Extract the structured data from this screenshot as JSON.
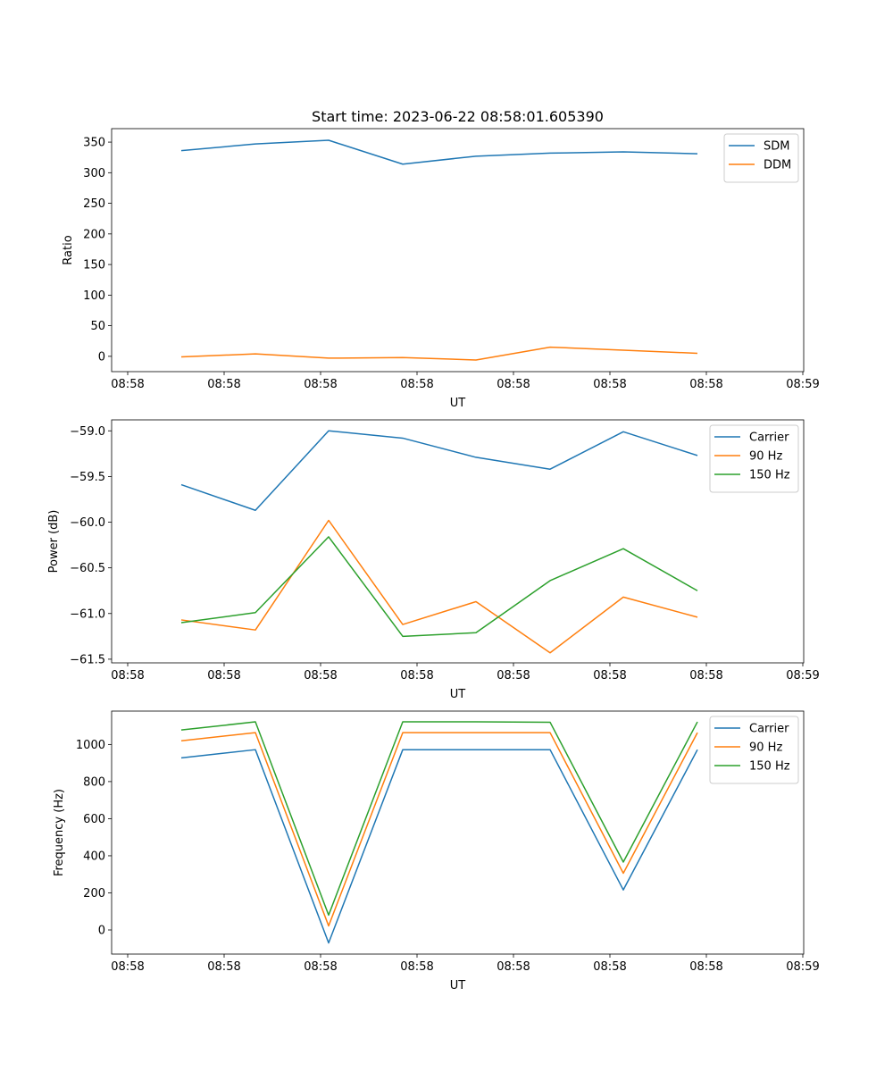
{
  "colors": {
    "blue": "#1f77b4",
    "orange": "#ff7f0e",
    "green": "#2ca02c"
  },
  "chart_data": [
    {
      "type": "line",
      "title": "Start time: 2023-06-22 08:58:01.605390",
      "xlabel": "UT",
      "ylabel": "Ratio",
      "x_tick_labels": [
        "08:58",
        "08:58",
        "08:58",
        "08:58",
        "08:58",
        "08:58",
        "08:58"
      ],
      "x_last_tick_label": "08:59",
      "y_ticks": [
        0,
        50,
        100,
        150,
        200,
        250,
        300,
        350
      ],
      "ylim": [
        -25,
        372
      ],
      "legend_position": "top-right",
      "grid": false,
      "series": [
        {
          "name": "SDM",
          "color": "blue",
          "values": [
            336,
            347,
            353,
            314,
            327,
            332,
            334,
            331
          ]
        },
        {
          "name": "DDM",
          "color": "orange",
          "values": [
            -1,
            4,
            -3,
            -2,
            -6,
            15,
            10,
            5
          ]
        }
      ]
    },
    {
      "type": "line",
      "title": "",
      "xlabel": "UT",
      "ylabel": "Power (dB)",
      "x_tick_labels": [
        "08:58",
        "08:58",
        "08:58",
        "08:58",
        "08:58",
        "08:58",
        "08:58"
      ],
      "x_last_tick_label": "08:59",
      "y_ticks": [
        -61.5,
        -61.0,
        -60.5,
        -60.0,
        -59.5,
        -59.0
      ],
      "y_tick_labels": [
        "−61.5",
        "−61.0",
        "−60.5",
        "−60.0",
        "−59.5",
        "−59.0"
      ],
      "ylim": [
        -61.54,
        -58.88
      ],
      "legend_position": "top-right",
      "grid": false,
      "series": [
        {
          "name": "Carrier",
          "color": "blue",
          "values": [
            -59.59,
            -59.87,
            -59.0,
            -59.08,
            -59.29,
            -59.42,
            -59.01,
            -59.27
          ]
        },
        {
          "name": "90 Hz",
          "color": "orange",
          "values": [
            -61.07,
            -61.18,
            -59.98,
            -61.12,
            -60.87,
            -61.43,
            -60.82,
            -61.04
          ]
        },
        {
          "name": "150 Hz",
          "color": "green",
          "values": [
            -61.1,
            -60.99,
            -60.16,
            -61.25,
            -61.21,
            -60.64,
            -60.29,
            -60.75
          ]
        }
      ]
    },
    {
      "type": "line",
      "title": "",
      "xlabel": "UT",
      "ylabel": "Frequency (Hz)",
      "x_tick_labels": [
        "08:58",
        "08:58",
        "08:58",
        "08:58",
        "08:58",
        "08:58",
        "08:58"
      ],
      "x_last_tick_label": "08:59",
      "y_ticks": [
        0,
        200,
        400,
        600,
        800,
        1000
      ],
      "ylim": [
        -130,
        1180
      ],
      "legend_position": "top-right",
      "grid": false,
      "series": [
        {
          "name": "Carrier",
          "color": "blue",
          "values": [
            928,
            972,
            -70,
            972,
            972,
            972,
            216,
            972
          ]
        },
        {
          "name": "90 Hz",
          "color": "orange",
          "values": [
            1020,
            1064,
            22,
            1064,
            1064,
            1064,
            306,
            1064
          ]
        },
        {
          "name": "150 Hz",
          "color": "green",
          "values": [
            1078,
            1122,
            80,
            1122,
            1122,
            1120,
            366,
            1122
          ]
        }
      ]
    }
  ]
}
